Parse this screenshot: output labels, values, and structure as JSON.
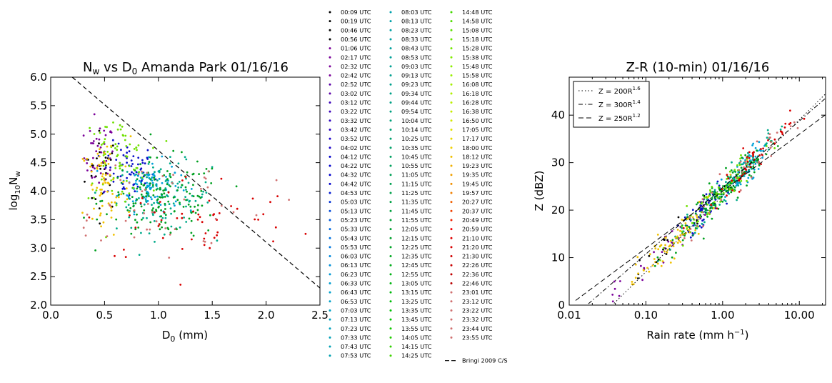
{
  "chart_data": [
    {
      "type": "scatter",
      "title": "N$_w$ vs D$_0$ Amanda Park 01/16/16",
      "title_prefix": "N",
      "title_sub": "w",
      "title_mid": " vs D",
      "title_sub2": "0",
      "title_suffix": " Amanda Park 01/16/16",
      "xlabel": "D",
      "xlabel_sub": "0",
      "xlabel_suffix": " (mm)",
      "ylabel": "log",
      "ylabel_sub": "10",
      "ylabel_mid": "N",
      "ylabel_sub2": "w",
      "xlim": [
        0.0,
        2.5
      ],
      "ylim": [
        2.0,
        6.0
      ],
      "xticks": [
        "0.0",
        "0.5",
        "1.0",
        "1.5",
        "2.0",
        "2.5"
      ],
      "xtick_values": [
        0.0,
        0.5,
        1.0,
        1.5,
        2.0,
        2.5
      ],
      "yticks": [
        "2.0",
        "2.5",
        "3.0",
        "3.5",
        "4.0",
        "4.5",
        "5.0",
        "5.5",
        "6.0"
      ],
      "ytick_values": [
        2.0,
        2.5,
        3.0,
        3.5,
        4.0,
        4.5,
        5.0,
        5.5,
        6.0
      ],
      "reference_line": {
        "name": "Bringi 2009 C/S",
        "x": [
          0.2,
          2.5
        ],
        "y": [
          6.0,
          2.3
        ],
        "style": "dashed"
      },
      "clusters": [
        {
          "times": [
            "00:09",
            "00:56"
          ],
          "color": "#000000",
          "cx": 0.48,
          "cy": 4.35,
          "sx": 0.08,
          "sy": 0.35,
          "n": 30
        },
        {
          "times": [
            "01:06",
            "03:02"
          ],
          "color": "#7a0099",
          "cx": 0.45,
          "cy": 4.6,
          "sx": 0.07,
          "sy": 0.3,
          "n": 45
        },
        {
          "times": [
            "03:12",
            "05:53"
          ],
          "color": "#0a0fc8",
          "cx": 0.72,
          "cy": 4.35,
          "sx": 0.12,
          "sy": 0.25,
          "n": 65
        },
        {
          "times": [
            "06:03",
            "07:53"
          ],
          "color": "#00a0d8",
          "cx": 0.92,
          "cy": 4.1,
          "sx": 0.14,
          "sy": 0.22,
          "n": 95
        },
        {
          "times": [
            "08:03",
            "09:54"
          ],
          "color": "#00aa8a",
          "cx": 1.05,
          "cy": 3.9,
          "sx": 0.22,
          "sy": 0.3,
          "n": 110
        },
        {
          "times": [
            "10:04",
            "13:05"
          ],
          "color": "#00a020",
          "cx": 1.05,
          "cy": 3.85,
          "sx": 0.28,
          "sy": 0.35,
          "n": 150
        },
        {
          "times": [
            "13:15",
            "15:58"
          ],
          "color": "#6fe000",
          "cx": 0.6,
          "cy": 4.6,
          "sx": 0.15,
          "sy": 0.35,
          "n": 75
        },
        {
          "times": [
            "16:08",
            "19:57"
          ],
          "color": "#f0c000",
          "cx": 0.5,
          "cy": 4.05,
          "sx": 0.12,
          "sy": 0.45,
          "n": 70
        },
        {
          "times": [
            "20:27",
            "22:46"
          ],
          "color": "#d80000",
          "cx": 1.3,
          "cy": 3.5,
          "sx": 0.5,
          "sy": 0.4,
          "n": 55
        },
        {
          "times": [
            "23:01",
            "23:55"
          ],
          "color": "#d07070",
          "cx": 0.9,
          "cy": 3.8,
          "sx": 0.55,
          "sy": 0.5,
          "n": 55
        }
      ]
    },
    {
      "type": "scatter",
      "title": "Z-R (10-min) 01/16/16",
      "xlabel": "Rain rate (mm h",
      "xlabel_sup": "−1",
      "xlabel_suffix": ")",
      "ylabel": "Z (dBZ)",
      "xscale": "log",
      "xlim": [
        0.01,
        22
      ],
      "ylim": [
        0,
        48
      ],
      "xticks": [
        "0.01",
        "0.10",
        "1.00",
        "10.00"
      ],
      "xtick_values": [
        0.01,
        0.1,
        1.0,
        10.0
      ],
      "yticks": [
        "0",
        "10",
        "20",
        "30",
        "40"
      ],
      "ytick_values": [
        0,
        10,
        20,
        30,
        40
      ],
      "legend_position": "upper-left",
      "relations": [
        {
          "label": "Z = 200R",
          "exp": "1.6",
          "a": 200,
          "b": 1.6,
          "style": "dotted"
        },
        {
          "label": "Z = 300R",
          "exp": "1.4",
          "a": 300,
          "b": 1.4,
          "style": "dashdot"
        },
        {
          "label": "Z = 250R",
          "exp": "1.2",
          "a": 250,
          "b": 1.2,
          "style": "dashed"
        }
      ],
      "points_band": {
        "a": 250,
        "b": 1.6,
        "logR_range": [
          -1.5,
          1.3
        ],
        "scatter_dBZ": 1.6
      },
      "clusters": [
        {
          "color": "#000000",
          "lcx": -0.8,
          "ls": 0.35,
          "n": 25
        },
        {
          "color": "#7a0099",
          "lcx": -0.9,
          "ls": 0.35,
          "n": 30
        },
        {
          "color": "#0a0fc8",
          "lcx": -0.25,
          "ls": 0.15,
          "n": 60
        },
        {
          "color": "#00a0d8",
          "lcx": 0.3,
          "ls": 0.12,
          "n": 70
        },
        {
          "color": "#00aa8a",
          "lcx": 0.1,
          "ls": 0.3,
          "n": 100
        },
        {
          "color": "#00a020",
          "lcx": 0.0,
          "ls": 0.3,
          "n": 130
        },
        {
          "color": "#6fe000",
          "lcx": -0.1,
          "ls": 0.3,
          "n": 70
        },
        {
          "color": "#f0c000",
          "lcx": -0.7,
          "ls": 0.35,
          "n": 70
        },
        {
          "color": "#d80000",
          "lcx": 0.45,
          "ls": 0.45,
          "n": 55
        },
        {
          "color": "#d07070",
          "lcx": 0.2,
          "ls": 0.5,
          "n": 40
        }
      ]
    }
  ],
  "legend": {
    "entries": [
      {
        "label": "00:09 UTC",
        "color": "#000000"
      },
      {
        "label": "00:19 UTC",
        "color": "#000000"
      },
      {
        "label": "00:46 UTC",
        "color": "#000000"
      },
      {
        "label": "00:56 UTC",
        "color": "#000000"
      },
      {
        "label": "01:06 UTC",
        "color": "#7a0099"
      },
      {
        "label": "02:17 UTC",
        "color": "#7a0099"
      },
      {
        "label": "02:32 UTC",
        "color": "#7a0099"
      },
      {
        "label": "02:42 UTC",
        "color": "#7a0099"
      },
      {
        "label": "02:52 UTC",
        "color": "#5a00a8"
      },
      {
        "label": "03:02 UTC",
        "color": "#5a00a8"
      },
      {
        "label": "03:12 UTC",
        "color": "#3a00b8"
      },
      {
        "label": "03:22 UTC",
        "color": "#3a00b8"
      },
      {
        "label": "03:32 UTC",
        "color": "#2a00c0"
      },
      {
        "label": "03:42 UTC",
        "color": "#2a00c0"
      },
      {
        "label": "03:52 UTC",
        "color": "#1a00c8"
      },
      {
        "label": "04:02 UTC",
        "color": "#1a00c8"
      },
      {
        "label": "04:12 UTC",
        "color": "#0000cc"
      },
      {
        "label": "04:22 UTC",
        "color": "#0000cc"
      },
      {
        "label": "04:32 UTC",
        "color": "#0000cc"
      },
      {
        "label": "04:42 UTC",
        "color": "#0000cc"
      },
      {
        "label": "04:53 UTC",
        "color": "#0018d0"
      },
      {
        "label": "05:03 UTC",
        "color": "#0030d4"
      },
      {
        "label": "05:13 UTC",
        "color": "#0048d8"
      },
      {
        "label": "05:23 UTC",
        "color": "#0058dc"
      },
      {
        "label": "05:33 UTC",
        "color": "#0068e0"
      },
      {
        "label": "05:43 UTC",
        "color": "#0070e0"
      },
      {
        "label": "05:53 UTC",
        "color": "#0078e0"
      },
      {
        "label": "06:03 UTC",
        "color": "#0088dc"
      },
      {
        "label": "06:13 UTC",
        "color": "#0090d8"
      },
      {
        "label": "06:23 UTC",
        "color": "#0098d4"
      },
      {
        "label": "06:33 UTC",
        "color": "#009cd0"
      },
      {
        "label": "06:43 UTC",
        "color": "#00a0cc"
      },
      {
        "label": "06:53 UTC",
        "color": "#00a0c8"
      },
      {
        "label": "07:03 UTC",
        "color": "#00a0c4"
      },
      {
        "label": "07:13 UTC",
        "color": "#00a0c0"
      },
      {
        "label": "07:23 UTC",
        "color": "#00a0bc"
      },
      {
        "label": "07:33 UTC",
        "color": "#00a0b8"
      },
      {
        "label": "07:43 UTC",
        "color": "#00a0b4"
      },
      {
        "label": "07:53 UTC",
        "color": "#00a0b0"
      },
      {
        "label": "08:03 UTC",
        "color": "#00a0ac"
      },
      {
        "label": "08:13 UTC",
        "color": "#00a0a8"
      },
      {
        "label": "08:23 UTC",
        "color": "#00a0a4"
      },
      {
        "label": "08:33 UTC",
        "color": "#00a0a0"
      },
      {
        "label": "08:43 UTC",
        "color": "#00a09c"
      },
      {
        "label": "08:53 UTC",
        "color": "#00a098"
      },
      {
        "label": "09:03 UTC",
        "color": "#00a094"
      },
      {
        "label": "09:13 UTC",
        "color": "#00a090"
      },
      {
        "label": "09:23 UTC",
        "color": "#00a08c"
      },
      {
        "label": "09:34 UTC",
        "color": "#00a088"
      },
      {
        "label": "09:44 UTC",
        "color": "#00a084"
      },
      {
        "label": "09:54 UTC",
        "color": "#00a080"
      },
      {
        "label": "10:04 UTC",
        "color": "#00a07a"
      },
      {
        "label": "10:14 UTC",
        "color": "#00a074"
      },
      {
        "label": "10:25 UTC",
        "color": "#00a06e"
      },
      {
        "label": "10:35 UTC",
        "color": "#00a068"
      },
      {
        "label": "10:45 UTC",
        "color": "#00a062"
      },
      {
        "label": "10:55 UTC",
        "color": "#00a05c"
      },
      {
        "label": "11:05 UTC",
        "color": "#00a056"
      },
      {
        "label": "11:15 UTC",
        "color": "#00a050"
      },
      {
        "label": "11:25 UTC",
        "color": "#00a04a"
      },
      {
        "label": "11:35 UTC",
        "color": "#00a044"
      },
      {
        "label": "11:45 UTC",
        "color": "#00a03e"
      },
      {
        "label": "11:55 UTC",
        "color": "#00a038"
      },
      {
        "label": "12:05 UTC",
        "color": "#00a032"
      },
      {
        "label": "12:15 UTC",
        "color": "#00a02c"
      },
      {
        "label": "12:25 UTC",
        "color": "#00a426"
      },
      {
        "label": "12:35 UTC",
        "color": "#00a820"
      },
      {
        "label": "12:45 UTC",
        "color": "#00ac1a"
      },
      {
        "label": "12:55 UTC",
        "color": "#00b014"
      },
      {
        "label": "13:05 UTC",
        "color": "#00b410"
      },
      {
        "label": "13:15 UTC",
        "color": "#00b80c"
      },
      {
        "label": "13:25 UTC",
        "color": "#00bc08"
      },
      {
        "label": "13:35 UTC",
        "color": "#00c004"
      },
      {
        "label": "13:45 UTC",
        "color": "#00c400"
      },
      {
        "label": "13:55 UTC",
        "color": "#10c800"
      },
      {
        "label": "14:05 UTC",
        "color": "#20cc00"
      },
      {
        "label": "14:15 UTC",
        "color": "#30d000"
      },
      {
        "label": "14:25 UTC",
        "color": "#40d400"
      },
      {
        "label": "14:48 UTC",
        "color": "#44d800"
      },
      {
        "label": "14:58 UTC",
        "color": "#50dc00"
      },
      {
        "label": "15:08 UTC",
        "color": "#5ce000"
      },
      {
        "label": "15:18 UTC",
        "color": "#68e400"
      },
      {
        "label": "15:28 UTC",
        "color": "#74e800"
      },
      {
        "label": "15:38 UTC",
        "color": "#80ec00"
      },
      {
        "label": "15:48 UTC",
        "color": "#8cf000"
      },
      {
        "label": "15:58 UTC",
        "color": "#98f000"
      },
      {
        "label": "16:08 UTC",
        "color": "#a4f000"
      },
      {
        "label": "16:18 UTC",
        "color": "#b0f000"
      },
      {
        "label": "16:28 UTC",
        "color": "#bcf000"
      },
      {
        "label": "16:38 UTC",
        "color": "#c8ec00"
      },
      {
        "label": "16:50 UTC",
        "color": "#d4e800"
      },
      {
        "label": "17:05 UTC",
        "color": "#e0e000"
      },
      {
        "label": "17:17 UTC",
        "color": "#e8d800"
      },
      {
        "label": "18:00 UTC",
        "color": "#f0d000"
      },
      {
        "label": "18:12 UTC",
        "color": "#f0c000"
      },
      {
        "label": "19:23 UTC",
        "color": "#f0b000"
      },
      {
        "label": "19:35 UTC",
        "color": "#f0a000"
      },
      {
        "label": "19:45 UTC",
        "color": "#f09000"
      },
      {
        "label": "19:57 UTC",
        "color": "#f08000"
      },
      {
        "label": "20:27 UTC",
        "color": "#f06000"
      },
      {
        "label": "20:37 UTC",
        "color": "#f04000"
      },
      {
        "label": "20:49 UTC",
        "color": "#f02000"
      },
      {
        "label": "20:59 UTC",
        "color": "#f00000"
      },
      {
        "label": "21:10 UTC",
        "color": "#e00000"
      },
      {
        "label": "21:20 UTC",
        "color": "#d80000"
      },
      {
        "label": "21:30 UTC",
        "color": "#d00000"
      },
      {
        "label": "22:26 UTC",
        "color": "#c80000"
      },
      {
        "label": "22:36 UTC",
        "color": "#c00000"
      },
      {
        "label": "22:46 UTC",
        "color": "#b80000"
      },
      {
        "label": "23:01 UTC",
        "color": "#d07070"
      },
      {
        "label": "23:12 UTC",
        "color": "#d07070"
      },
      {
        "label": "23:22 UTC",
        "color": "#d07070"
      },
      {
        "label": "23:32 UTC",
        "color": "#d07070"
      },
      {
        "label": "23:44 UTC",
        "color": "#d07070"
      },
      {
        "label": "23:55 UTC",
        "color": "#d07070"
      }
    ],
    "line_entry": {
      "label": "Bringi 2009 C/S",
      "color": "#000000",
      "style": "dashed"
    }
  }
}
